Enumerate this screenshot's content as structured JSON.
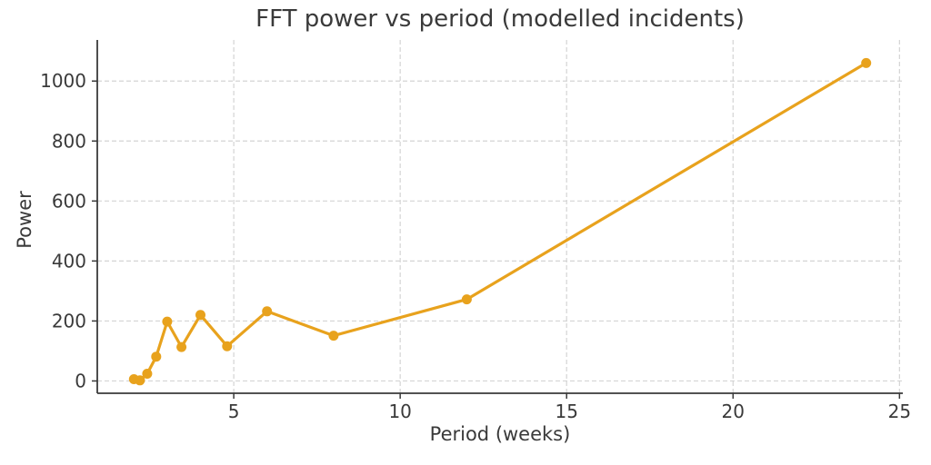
{
  "chart_data": {
    "type": "line",
    "title": "FFT power vs period (modelled incidents)",
    "xlabel": "Period (weeks)",
    "ylabel": "Power",
    "x": [
      2.0,
      2.18,
      2.4,
      2.67,
      3.0,
      3.43,
      4.0,
      4.8,
      6.0,
      8.0,
      12.0,
      24.0
    ],
    "y": [
      6,
      2,
      24,
      81,
      198,
      113,
      220,
      116,
      232,
      151,
      272,
      1060
    ],
    "xticks": [
      5,
      10,
      15,
      20,
      25
    ],
    "yticks": [
      0,
      200,
      400,
      600,
      800,
      1000
    ],
    "xlim": [
      0.9,
      25.1
    ],
    "ylim": [
      -41,
      1137
    ],
    "grid": true,
    "legend_position": "none",
    "line_color": "#E8A21D",
    "marker": "circle",
    "marker_radius": 5.5,
    "line_width": 3.2
  }
}
